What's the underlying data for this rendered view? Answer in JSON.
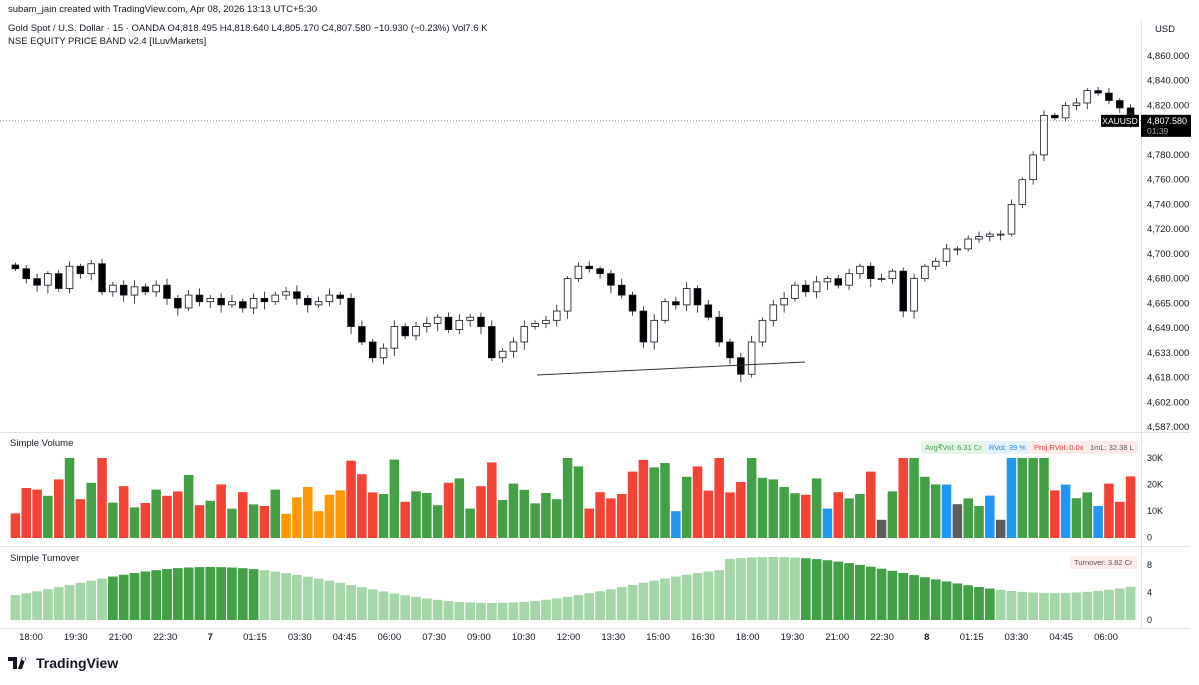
{
  "header": {
    "credit": "subam_jain created with TradingView.com, Apr 08, 2026 13:13 UTC+5:30",
    "symbol_line": "Gold Spot / U.S. Dollar · 15 · OANDA  O4,818.495  H4,818.640  L4,805.170  C4,807.580  −10.930 (−0.23%)  Vol7.6 K",
    "indicator_line": "NSE EQUITY PRICE BAND v2.4 [ILuvMarkets]",
    "currency": "USD"
  },
  "price_pane": {
    "last_label": "XAUUSD",
    "last_price": "4,807.580",
    "countdown": "01:39",
    "ticks": [
      "4,860.000",
      "4,840.000",
      "4,820.000",
      "4,800.000",
      "4,780.000",
      "4,760.000",
      "4,740.000",
      "4,720.000",
      "4,700.000",
      "4,680.000",
      "4,665.000",
      "4,649.000",
      "4,633.000",
      "4,618.000",
      "4,602.000",
      "4,587.000"
    ]
  },
  "volume_pane": {
    "title": "Simple Volume",
    "ticks": [
      "30K",
      "20K",
      "10K",
      "0"
    ],
    "tag_avg": "Avg₹Vol: 6.31 Cr",
    "tag_rvol": "RVol: 39 %",
    "tag_proj": "Proj RVol: 0.0x",
    "tag_1ml": "1mL: 32.38 L"
  },
  "turnover_pane": {
    "title": "Simple Turnover",
    "ticks": [
      "8",
      "4",
      "0"
    ],
    "tag_turnover": "Turnover: 3.82 Cr"
  },
  "time_axis": [
    "18:00",
    "19:30",
    "21:00",
    "22:30",
    "7",
    "01:15",
    "03:30",
    "04:45",
    "06:00",
    "07:30",
    "09:00",
    "10:30",
    "12:00",
    "13:30",
    "15:00",
    "16:30",
    "18:00",
    "19:30",
    "21:00",
    "22:30",
    "8",
    "01:15",
    "03:30",
    "04:45",
    "06:00"
  ],
  "brand": "TradingView",
  "colors": {
    "up": "#43a047",
    "down": "#f44336",
    "neutral": "#5d5d5d",
    "high": "#2196f3",
    "low": "#ff9800",
    "turnover_light": "#a5d6a7",
    "turnover_dark": "#43a047"
  },
  "chart_data": {
    "type": "candlestick",
    "title": "Gold Spot / U.S. Dollar · 15 · OANDA",
    "ylim": [
      4587,
      4870
    ],
    "closes": [
      4688,
      4680,
      4676,
      4684,
      4674,
      4690,
      4684,
      4692,
      4672,
      4676,
      4670,
      4675,
      4672,
      4676,
      4668,
      4662,
      4670,
      4666,
      4668,
      4664,
      4666,
      4662,
      4668,
      4666,
      4670,
      4672,
      4668,
      4664,
      4666,
      4670,
      4668,
      4650,
      4640,
      4630,
      4636,
      4650,
      4644,
      4650,
      4652,
      4656,
      4648,
      4654,
      4656,
      4650,
      4630,
      4634,
      4640,
      4650,
      4652,
      4654,
      4660,
      4680,
      4690,
      4688,
      4684,
      4676,
      4670,
      4660,
      4640,
      4654,
      4666,
      4664,
      4674,
      4664,
      4656,
      4640,
      4630,
      4620,
      4640,
      4654,
      4664,
      4668,
      4676,
      4672,
      4678,
      4680,
      4676,
      4684,
      4690,
      4680,
      4680,
      4686,
      4660,
      4680,
      4690,
      4694,
      4704,
      4704,
      4712,
      4714,
      4716,
      4716,
      4740,
      4760,
      4780,
      4812,
      4810,
      4820,
      4822,
      4832,
      4830,
      4824,
      4818,
      4807
    ],
    "volume_units": "K",
    "turnover_units": "Cr"
  }
}
